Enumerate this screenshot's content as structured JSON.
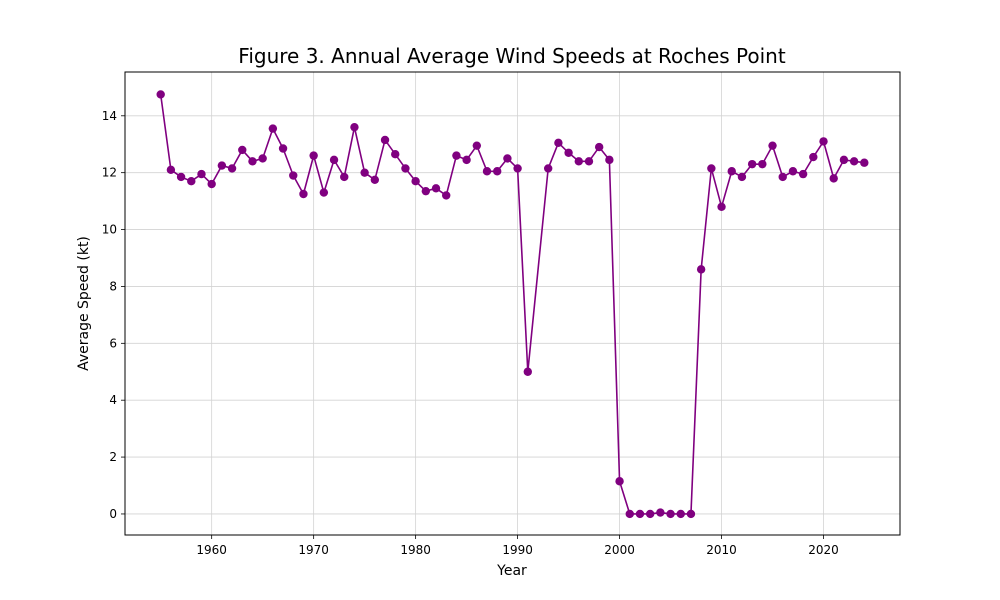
{
  "chart_data": {
    "type": "line",
    "title": "Figure 3. Annual Average Wind Speeds at Roches Point",
    "xlabel": "Year",
    "ylabel": "Average Speed (kt)",
    "xlim": [
      1951.5,
      2027.5
    ],
    "ylim": [
      -0.74,
      15.54
    ],
    "x_ticks": [
      1960,
      1970,
      1980,
      1990,
      2000,
      2010,
      2020
    ],
    "y_ticks": [
      0,
      2,
      4,
      6,
      8,
      10,
      12,
      14
    ],
    "grid": true,
    "legend": "none",
    "series": [
      {
        "color": "#800080",
        "marker": "circle",
        "x": [
          1955,
          1956,
          1957,
          1958,
          1959,
          1960,
          1961,
          1962,
          1963,
          1964,
          1965,
          1966,
          1967,
          1968,
          1969,
          1970,
          1971,
          1972,
          1973,
          1974,
          1975,
          1976,
          1977,
          1978,
          1979,
          1980,
          1981,
          1982,
          1983,
          1984,
          1985,
          1986,
          1987,
          1988,
          1989,
          1990,
          1991,
          1993,
          1994,
          1995,
          1996,
          1997,
          1998,
          1999,
          2000,
          2001,
          2002,
          2003,
          2004,
          2005,
          2006,
          2007,
          2008,
          2009,
          2010,
          2011,
          2012,
          2013,
          2014,
          2015,
          2016,
          2017,
          2018,
          2019,
          2020,
          2021,
          2022,
          2023,
          2024
        ],
        "y": [
          14.75,
          12.1,
          11.85,
          11.7,
          11.95,
          11.6,
          12.25,
          12.15,
          12.8,
          12.4,
          12.5,
          13.55,
          12.85,
          11.9,
          11.25,
          12.6,
          11.3,
          12.45,
          11.85,
          13.6,
          12.0,
          11.75,
          13.15,
          12.65,
          12.15,
          11.7,
          11.35,
          11.45,
          11.2,
          12.6,
          12.45,
          12.95,
          12.05,
          12.05,
          12.5,
          12.15,
          5.0,
          12.15,
          13.05,
          12.7,
          12.4,
          12.4,
          12.9,
          12.45,
          1.15,
          0.0,
          0.0,
          0.0,
          0.05,
          0.0,
          0.0,
          0.0,
          8.6,
          12.15,
          10.8,
          12.05,
          11.85,
          12.3,
          12.3,
          12.95,
          11.85,
          12.05,
          11.95,
          12.55,
          13.1,
          11.8,
          12.45,
          12.4,
          12.35
        ]
      }
    ]
  }
}
